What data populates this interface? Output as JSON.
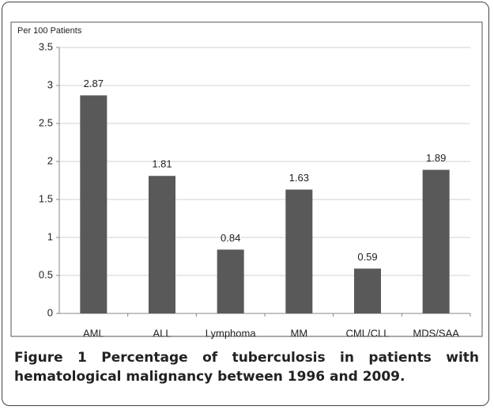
{
  "chart_data": {
    "type": "bar",
    "y_axis_label": "Per 100 Patients",
    "categories": [
      "AML",
      "ALL",
      "Lymphoma",
      "MM",
      "CML/CLL",
      "MDS/SAA"
    ],
    "values": [
      2.87,
      1.81,
      0.84,
      1.63,
      0.59,
      1.89
    ],
    "color": "#595959",
    "ylim": [
      0,
      3.5
    ],
    "yticks": [
      0,
      0.5,
      1,
      1.5,
      2,
      2.5,
      3,
      3.5
    ],
    "grid": true
  },
  "caption": {
    "label": "Figure 1",
    "text": "Percentage of tuberculosis in patients with hematological malignancy between 1996 and 2009."
  }
}
